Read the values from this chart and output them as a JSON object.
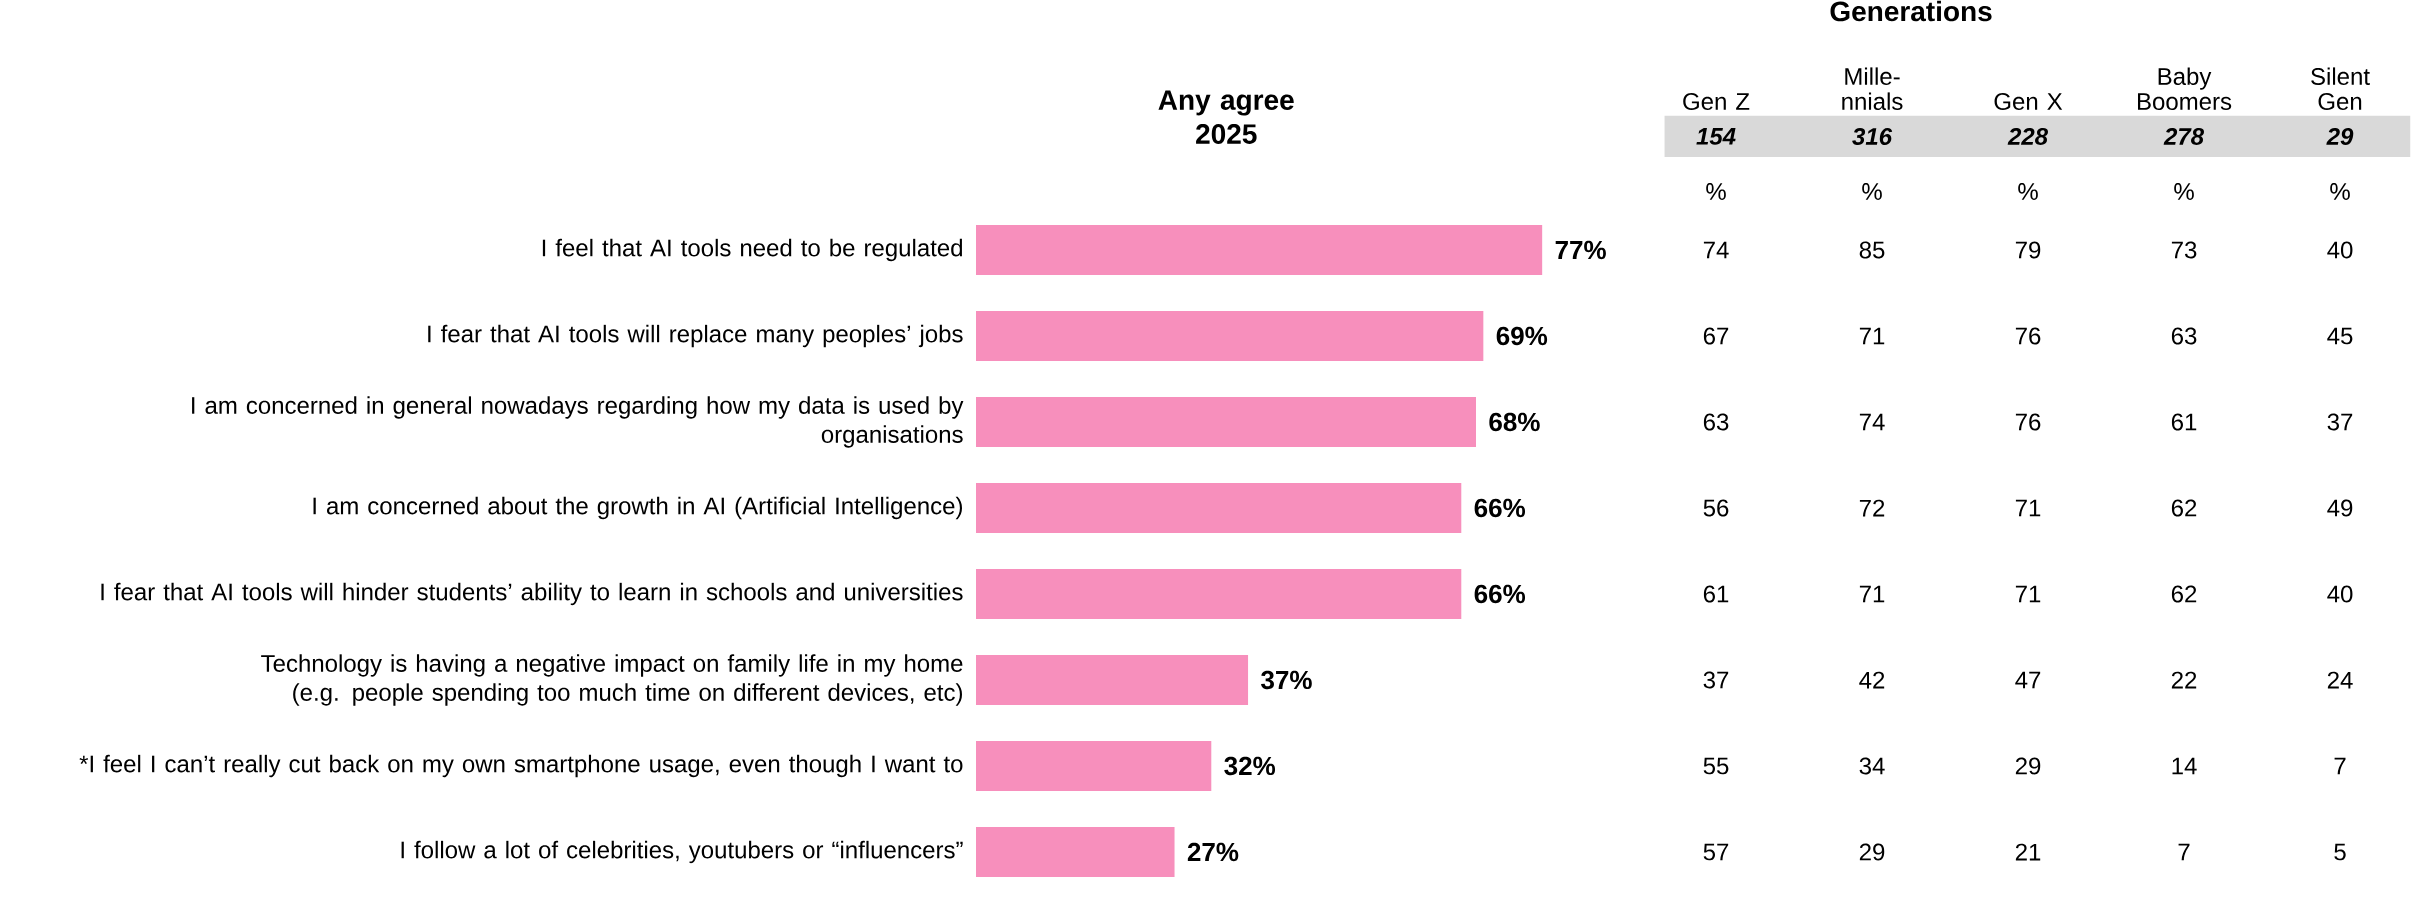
{
  "chart_data": [
    {
      "type": "bar",
      "orientation": "horizontal",
      "title": "Any agree 2025",
      "categories": [
        "I feel that AI tools need to be regulated",
        "I fear that AI tools will replace many peoples’ jobs",
        "I am concerned in general nowadays regarding how my data is used by organisations",
        "I am concerned about the growth in AI (Artificial Intelligence)",
        "I fear that AI tools will hinder students’ ability to learn in schools and universities",
        "Technology is having a negative impact on family life in my home (e.g. people spending too much time on different devices, etc)",
        "*I feel I can’t really cut back on my own smartphone usage, even though I want to",
        "I follow a lot of celebrities, youtubers or “influencers”"
      ],
      "values": [
        77,
        69,
        68,
        66,
        66,
        37,
        32,
        27
      ],
      "value_labels": [
        "77%",
        "69%",
        "68%",
        "66%",
        "66%",
        "37%",
        "32%",
        "27%"
      ],
      "color": "#f78fbc"
    },
    {
      "type": "heatmap",
      "title": "Generations",
      "categories": [
        "Gen Z",
        "Mille- nnials",
        "Gen X",
        "Baby Boomers",
        "Silent Gen"
      ],
      "y_categories": [
        null,
        null,
        null,
        null,
        null,
        null,
        null,
        null
      ],
      "cells": [
        [
          74,
          85,
          79,
          73,
          40
        ],
        [
          67,
          71,
          76,
          63,
          45
        ],
        [
          63,
          74,
          76,
          61,
          37
        ],
        [
          56,
          72,
          71,
          62,
          49
        ],
        [
          61,
          71,
          71,
          62,
          40
        ],
        [
          37,
          42,
          47,
          22,
          24
        ],
        [
          55,
          34,
          29,
          14,
          7
        ],
        [
          57,
          29,
          21,
          7,
          5
        ]
      ],
      "data_labels": true,
      "annotations": [
        "154",
        "316",
        "228",
        "278",
        "29",
        "%",
        "%",
        "%",
        "%",
        "%"
      ]
    }
  ]
}
